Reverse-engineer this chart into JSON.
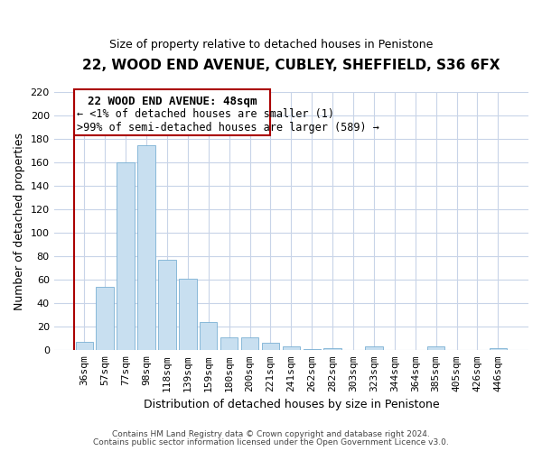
{
  "title_line1": "22, WOOD END AVENUE, CUBLEY, SHEFFIELD, S36 6FX",
  "title_line2": "Size of property relative to detached houses in Penistone",
  "xlabel": "Distribution of detached houses by size in Penistone",
  "ylabel": "Number of detached properties",
  "bar_labels": [
    "36sqm",
    "57sqm",
    "77sqm",
    "98sqm",
    "118sqm",
    "139sqm",
    "159sqm",
    "180sqm",
    "200sqm",
    "221sqm",
    "241sqm",
    "262sqm",
    "282sqm",
    "303sqm",
    "323sqm",
    "344sqm",
    "364sqm",
    "385sqm",
    "405sqm",
    "426sqm",
    "446sqm"
  ],
  "bar_values": [
    7,
    54,
    160,
    175,
    77,
    61,
    24,
    11,
    11,
    6,
    3,
    1,
    2,
    0,
    3,
    0,
    0,
    3,
    0,
    0,
    2
  ],
  "bar_color": "#c8dff0",
  "bar_edge_color": "#7ab0d4",
  "ylim": [
    0,
    220
  ],
  "yticks": [
    0,
    20,
    40,
    60,
    80,
    100,
    120,
    140,
    160,
    180,
    200,
    220
  ],
  "annotation_line1": "22 WOOD END AVENUE: 48sqm",
  "annotation_line2": "← <1% of detached houses are smaller (1)",
  "annotation_line3": ">99% of semi-detached houses are larger (589) →",
  "footer_line1": "Contains HM Land Registry data © Crown copyright and database right 2024.",
  "footer_line2": "Contains public sector information licensed under the Open Government Licence v3.0.",
  "grid_color": "#c8d4e8",
  "box_edge_color": "#aa0000",
  "left_line_color": "#aa0000",
  "title_fontsize": 11,
  "subtitle_fontsize": 9,
  "ylabel_fontsize": 9,
  "xlabel_fontsize": 9,
  "tick_fontsize": 8,
  "footer_fontsize": 6.5,
  "ann_fontsize1": 9,
  "ann_fontsize2": 8.5
}
